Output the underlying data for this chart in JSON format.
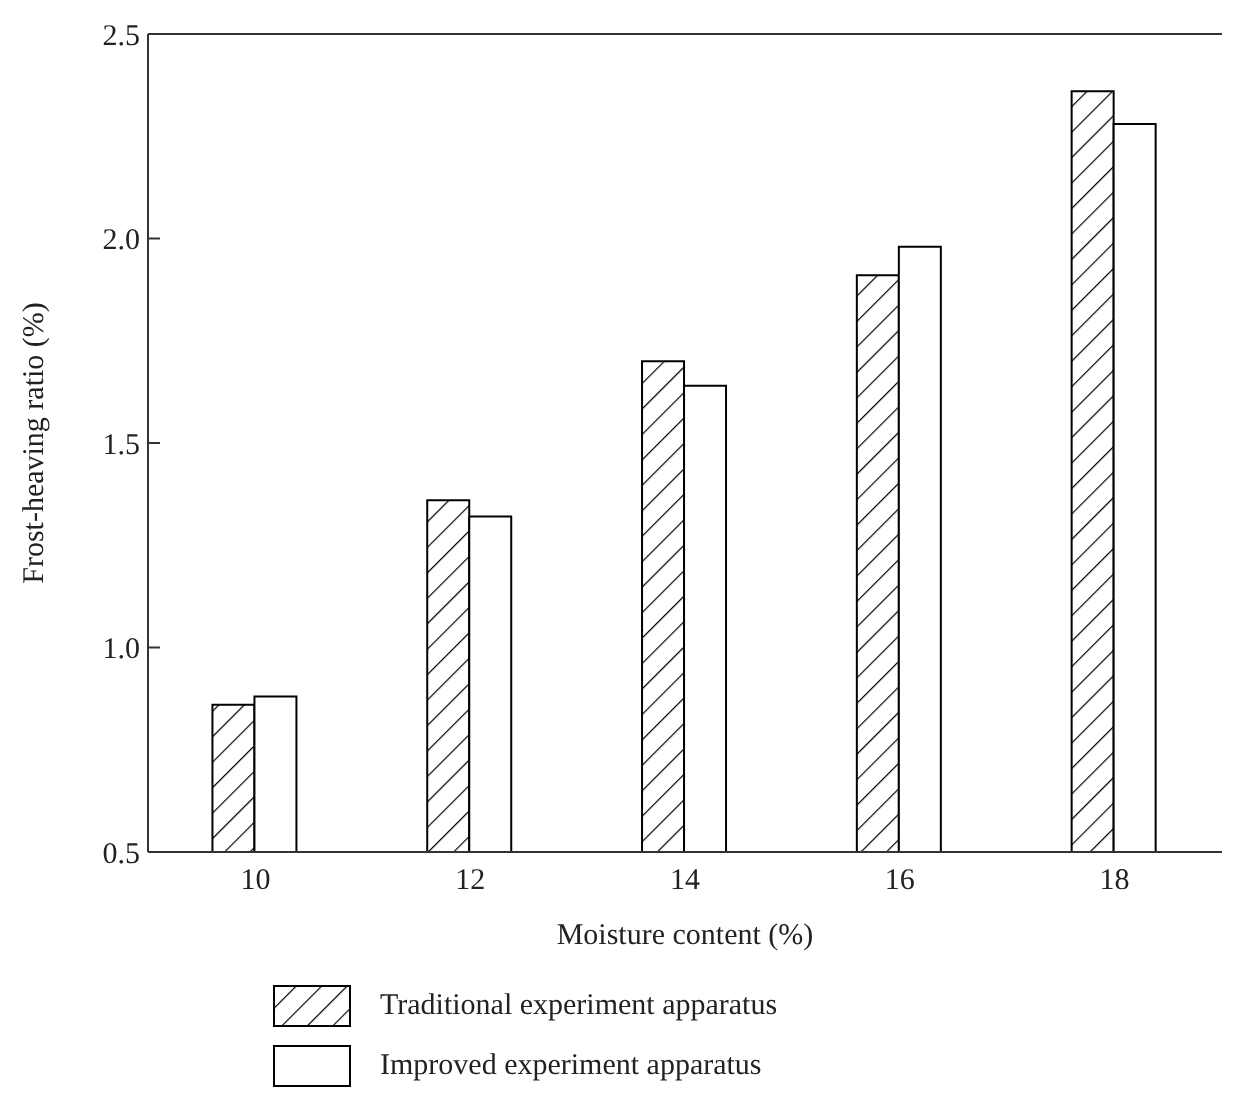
{
  "chart_data": {
    "type": "bar",
    "xlabel": "Moisture content (%)",
    "ylabel": "Frost-heaving ratio (%)",
    "categories": [
      "10",
      "12",
      "14",
      "16",
      "18"
    ],
    "series": [
      {
        "name": "Traditional experiment apparatus",
        "color": "#000000",
        "values": [
          0.86,
          1.36,
          1.7,
          1.91,
          2.36
        ]
      },
      {
        "name": "Improved experiment apparatus",
        "color": "#ffffff",
        "values": [
          0.88,
          1.32,
          1.64,
          1.98,
          2.28
        ]
      }
    ],
    "ylim": [
      0.5,
      2.5
    ],
    "yticks": [
      0.5,
      {
        "value": 1,
        "label": "1.0"
      },
      1.5,
      {
        "value": 2,
        "label": "2.0"
      },
      2.5
    ],
    "grid": false,
    "legend": "bottom"
  }
}
